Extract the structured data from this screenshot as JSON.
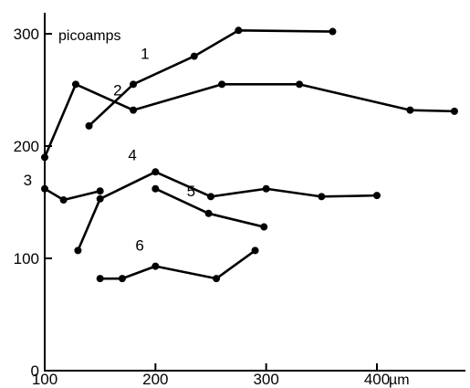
{
  "chart_data": {
    "type": "line",
    "title": "",
    "xlabel": "",
    "ylabel": "",
    "x_unit": "µm",
    "y_unit": "picoamps",
    "xlim": [
      100,
      480
    ],
    "ylim": [
      0,
      320
    ],
    "x_ticks": [
      100,
      200,
      300,
      400
    ],
    "x_tick_labels": [
      "100",
      "200",
      "300",
      "400"
    ],
    "y_ticks": [
      0,
      100,
      200,
      300
    ],
    "y_tick_labels": [
      "0",
      "100",
      "200",
      "300"
    ],
    "grid": false,
    "legend": "none",
    "series": [
      {
        "label": "1",
        "x": [
          140,
          180,
          235,
          275,
          360
        ],
        "y": [
          218,
          255,
          280,
          303,
          302
        ]
      },
      {
        "label": "2",
        "x": [
          100,
          128,
          180,
          260,
          330,
          430,
          470
        ],
        "y": [
          190,
          255,
          232,
          255,
          255,
          232,
          231
        ]
      },
      {
        "label": "3",
        "x": [
          100,
          117,
          150
        ],
        "y": [
          162,
          152,
          160
        ]
      },
      {
        "label": "4",
        "x": [
          130,
          150,
          200,
          250,
          300,
          350,
          400
        ],
        "y": [
          107,
          153,
          177,
          155,
          162,
          155,
          156
        ]
      },
      {
        "label": "5",
        "x": [
          200,
          248,
          298
        ],
        "y": [
          162,
          140,
          128
        ]
      },
      {
        "label": "6",
        "x": [
          150,
          170,
          200,
          255,
          290
        ],
        "y": [
          82,
          82,
          93,
          82,
          107
        ]
      }
    ]
  }
}
